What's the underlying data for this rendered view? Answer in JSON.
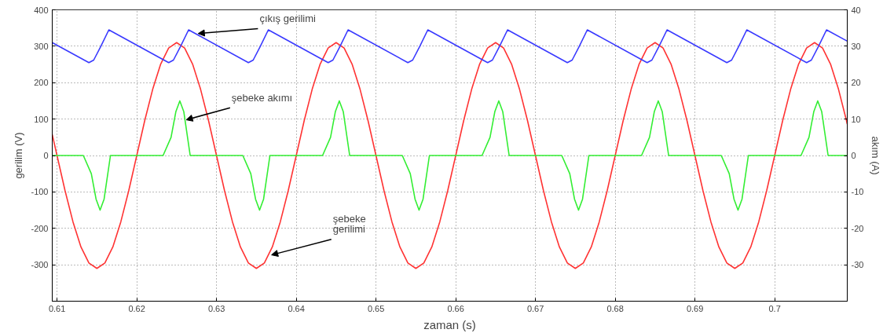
{
  "chart_data": {
    "type": "line",
    "xlabel": "zaman (s)",
    "ylabel": "gerilim (V)",
    "y2label": "akım (A)",
    "xlim": [
      0.6094,
      0.7091
    ],
    "xticks": [
      0.61,
      0.62,
      0.63,
      0.64,
      0.65,
      0.66,
      0.67,
      0.68,
      0.69,
      0.7
    ],
    "ylim": [
      -400,
      400
    ],
    "yticks": [
      {
        "value": -400,
        "label": null
      },
      -300,
      -200,
      -100,
      0,
      100,
      200,
      300,
      400
    ],
    "y2lim": [
      -40,
      40
    ],
    "y2ticks": [
      {
        "value": -40,
        "label": null
      },
      -30,
      -20,
      -10,
      0,
      10,
      20,
      30,
      40
    ],
    "grid": true,
    "line_style": "solid",
    "series": [
      {
        "color": "#ff3333",
        "x": [
          0.6094,
          0.61,
          0.611,
          0.612,
          0.613,
          0.614,
          0.615,
          0.616,
          0.617,
          0.618,
          0.619,
          0.62,
          0.621,
          0.622,
          0.623,
          0.624,
          0.625,
          0.626,
          0.627,
          0.628,
          0.629,
          0.63,
          0.631,
          0.632,
          0.633,
          0.634,
          0.635,
          0.636,
          0.637,
          0.638,
          0.639,
          0.64,
          0.641,
          0.642,
          0.643,
          0.644,
          0.645,
          0.646,
          0.647,
          0.648,
          0.649,
          0.65,
          0.651,
          0.652,
          0.653,
          0.654,
          0.655,
          0.656,
          0.657,
          0.658,
          0.659,
          0.66,
          0.661,
          0.662,
          0.663,
          0.664,
          0.665,
          0.666,
          0.667,
          0.668,
          0.669,
          0.67,
          0.671,
          0.672,
          0.673,
          0.674,
          0.675,
          0.676,
          0.677,
          0.678,
          0.679,
          0.68,
          0.681,
          0.682,
          0.683,
          0.684,
          0.685,
          0.686,
          0.687,
          0.688,
          0.689,
          0.69,
          0.691,
          0.692,
          0.693,
          0.694,
          0.695,
          0.696,
          0.697,
          0.698,
          0.699,
          0.7,
          0.701,
          0.702,
          0.703,
          0.704,
          0.705,
          0.706,
          0.707,
          0.708,
          0.709,
          0.7091
        ],
        "values": [
          58,
          0,
          -96,
          -182,
          -251,
          -295,
          -310,
          -295,
          -251,
          -182,
          -96,
          0,
          96,
          182,
          251,
          295,
          310,
          295,
          251,
          182,
          96,
          0,
          -96,
          -182,
          -251,
          -295,
          -310,
          -295,
          -251,
          -182,
          -96,
          0,
          96,
          182,
          251,
          295,
          310,
          295,
          251,
          182,
          96,
          0,
          -96,
          -182,
          -251,
          -295,
          -310,
          -295,
          -251,
          -182,
          -96,
          0,
          96,
          182,
          251,
          295,
          310,
          295,
          251,
          182,
          96,
          0,
          -96,
          -182,
          -251,
          -295,
          -310,
          -295,
          -251,
          -182,
          -96,
          0,
          96,
          182,
          251,
          295,
          310,
          295,
          251,
          182,
          96,
          0,
          -96,
          -182,
          -251,
          -295,
          -310,
          -295,
          -251,
          -182,
          -96,
          0,
          96,
          182,
          251,
          295,
          310,
          295,
          251,
          182,
          96,
          86
        ]
      },
      {
        "color": "#3a3aff",
        "x": [
          0.6094,
          0.614,
          0.6146,
          0.6155,
          0.6165,
          0.624,
          0.6246,
          0.6255,
          0.6265,
          0.634,
          0.6346,
          0.6355,
          0.6365,
          0.644,
          0.6446,
          0.6455,
          0.6465,
          0.654,
          0.6546,
          0.6555,
          0.6565,
          0.664,
          0.6646,
          0.6655,
          0.6665,
          0.674,
          0.6746,
          0.6755,
          0.6765,
          0.684,
          0.6846,
          0.6855,
          0.6865,
          0.694,
          0.6946,
          0.6955,
          0.6965,
          0.704,
          0.7046,
          0.7055,
          0.7065,
          0.7091
        ],
        "values": [
          310,
          255,
          262,
          300,
          345,
          255,
          262,
          300,
          345,
          255,
          262,
          300,
          345,
          255,
          262,
          300,
          345,
          255,
          262,
          300,
          345,
          255,
          262,
          300,
          345,
          255,
          262,
          300,
          345,
          255,
          262,
          300,
          345,
          255,
          262,
          300,
          345,
          255,
          262,
          300,
          345,
          314
        ]
      },
      {
        "color": "#33ee33",
        "axis": "y2",
        "x": [
          0.6094,
          0.6133,
          0.6143,
          0.6149,
          0.6154,
          0.6159,
          0.6167,
          0.6233,
          0.6243,
          0.6249,
          0.6254,
          0.6259,
          0.6267,
          0.6333,
          0.6343,
          0.6349,
          0.6354,
          0.6359,
          0.6367,
          0.6433,
          0.6443,
          0.6449,
          0.6454,
          0.6459,
          0.6467,
          0.6533,
          0.6543,
          0.6549,
          0.6554,
          0.6559,
          0.6567,
          0.6633,
          0.6643,
          0.6649,
          0.6654,
          0.6659,
          0.6667,
          0.6733,
          0.6743,
          0.6749,
          0.6754,
          0.6759,
          0.6767,
          0.6833,
          0.6843,
          0.6849,
          0.6854,
          0.6859,
          0.6867,
          0.6933,
          0.6943,
          0.6949,
          0.6954,
          0.6959,
          0.6967,
          0.7033,
          0.7043,
          0.7049,
          0.7054,
          0.7059,
          0.7067,
          0.7091
        ],
        "values": [
          0,
          0,
          -5,
          -12,
          -15,
          -12,
          0,
          0,
          5,
          12,
          15,
          12,
          0,
          0,
          -5,
          -12,
          -15,
          -12,
          0,
          0,
          5,
          12,
          15,
          12,
          0,
          0,
          -5,
          -12,
          -15,
          -12,
          0,
          0,
          5,
          12,
          15,
          12,
          0,
          0,
          -5,
          -12,
          -15,
          -12,
          0,
          0,
          5,
          12,
          15,
          12,
          0,
          0,
          -5,
          -12,
          -15,
          -12,
          0,
          0,
          5,
          12,
          15,
          12,
          0,
          0
        ]
      }
    ],
    "annotations": [
      {
        "text": "çıkış gerilimi",
        "x": 0.6277,
        "y": 335
      },
      {
        "text": "şebeke akımı",
        "x": 0.6262,
        "y": 98
      },
      {
        "text": "şebeke\ngerilimi",
        "x": 0.6369,
        "y": -273
      }
    ]
  }
}
